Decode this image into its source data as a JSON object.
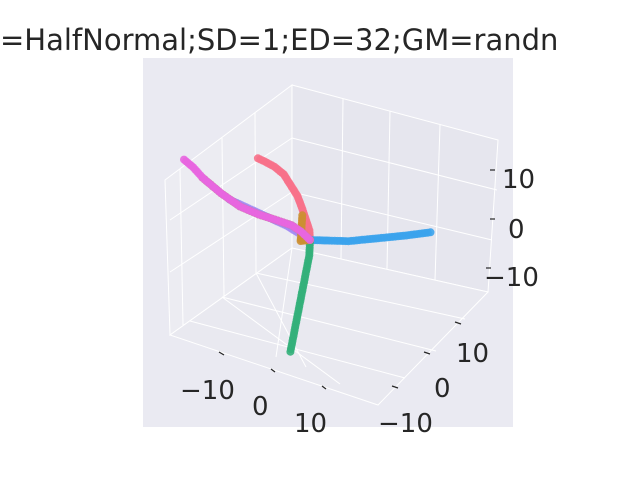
{
  "title": "=HalfNormal;SD=1;ED=32;GM=randn",
  "chart_data": {
    "type": "scatter",
    "projection": "3d",
    "title": "=HalfNormal;SD=1;ED=32;GM=randn",
    "style": "seaborn darkgrid",
    "grid": true,
    "legend": "none",
    "xlim": [
      -20,
      20
    ],
    "ylim": [
      -20,
      20
    ],
    "zlim": [
      -15,
      20
    ],
    "x_ticks": [
      {
        "value": -10,
        "label": "−10"
      },
      {
        "value": 0,
        "label": "0"
      },
      {
        "value": 10,
        "label": "10"
      }
    ],
    "y_ticks": [
      {
        "value": -10,
        "label": "−10"
      },
      {
        "value": 0,
        "label": "0"
      },
      {
        "value": 10,
        "label": "10"
      }
    ],
    "z_ticks": [
      {
        "value": -10,
        "label": "−10"
      },
      {
        "value": 0,
        "label": "0"
      },
      {
        "value": 10,
        "label": "10"
      }
    ],
    "colors": {
      "background_panel": "#eaeaf2",
      "pane_left": "#ececf2",
      "pane_right": "#e6e6ee",
      "pane_floor": "#e9e9f0",
      "grid": "#ffffff",
      "text": "#262626"
    },
    "series": [
      {
        "color": "#f77189",
        "points": [
          [
            0,
            0,
            0
          ],
          [
            0,
            0.2,
            2
          ],
          [
            0.5,
            0.6,
            4
          ],
          [
            1,
            1,
            6
          ],
          [
            1.5,
            1.5,
            8
          ],
          [
            2,
            2.5,
            10
          ],
          [
            2.5,
            3.5,
            12
          ],
          [
            3,
            5,
            13.5
          ],
          [
            3.5,
            6.5,
            14.5
          ],
          [
            4,
            7.5,
            15
          ]
        ]
      },
      {
        "color": "#3ba3ec",
        "points": [
          [
            0,
            0,
            0
          ],
          [
            -1,
            -1,
            0.5
          ],
          [
            -2,
            -2,
            1
          ],
          [
            -4,
            -4,
            2
          ],
          [
            -6,
            -6,
            3.5
          ],
          [
            -8,
            -8,
            5
          ],
          [
            -10,
            -10,
            6.5
          ],
          [
            -12,
            -13,
            8
          ]
        ]
      },
      {
        "color": "#a48cf4",
        "points": [
          [
            0,
            0,
            0
          ],
          [
            1,
            1.5,
            1
          ],
          [
            2,
            3,
            2
          ],
          [
            3,
            5,
            3
          ],
          [
            4,
            7,
            4
          ],
          [
            5,
            9,
            5
          ],
          [
            6,
            11,
            6
          ]
        ]
      },
      {
        "color": "#33b07a",
        "points": [
          [
            0,
            0,
            0
          ],
          [
            -1,
            1,
            -2
          ],
          [
            -2,
            2.5,
            -4
          ],
          [
            -3,
            4,
            -6
          ],
          [
            -4,
            5.5,
            -8
          ],
          [
            -5,
            7,
            -10
          ],
          [
            -6,
            8.5,
            -12
          ],
          [
            -7,
            10,
            -14
          ]
        ]
      },
      {
        "color": "#cc8f32",
        "points": [
          [
            0,
            0,
            0
          ],
          [
            2,
            -1,
            -2
          ],
          [
            4,
            -2,
            -4
          ],
          [
            6,
            -4,
            -5.5
          ],
          [
            8,
            -6,
            -6.5
          ],
          [
            10,
            -8,
            -7
          ],
          [
            12,
            -10,
            -7.5
          ]
        ]
      },
      {
        "color": "#8fa334",
        "points": [
          [
            0,
            0,
            0
          ],
          [
            3,
            -1,
            -1
          ],
          [
            6,
            -2,
            -2.5
          ],
          [
            9,
            -2,
            -4
          ],
          [
            12,
            -1,
            -5
          ],
          [
            14,
            1,
            -4.5
          ],
          [
            16,
            3,
            -3
          ],
          [
            18,
            5,
            -1
          ]
        ]
      },
      {
        "color": "#e866e0",
        "points": [
          [
            0,
            0,
            0
          ],
          [
            3,
            -1,
            -1
          ],
          [
            6,
            -2,
            -2.5
          ],
          [
            9,
            -2,
            -4
          ],
          [
            12,
            -1,
            -5
          ],
          [
            14,
            1,
            -4.5
          ],
          [
            16,
            3,
            -3
          ],
          [
            18,
            5,
            -1
          ],
          [
            19,
            6,
            0.5
          ],
          [
            20,
            7,
            1.5
          ]
        ]
      }
    ]
  }
}
